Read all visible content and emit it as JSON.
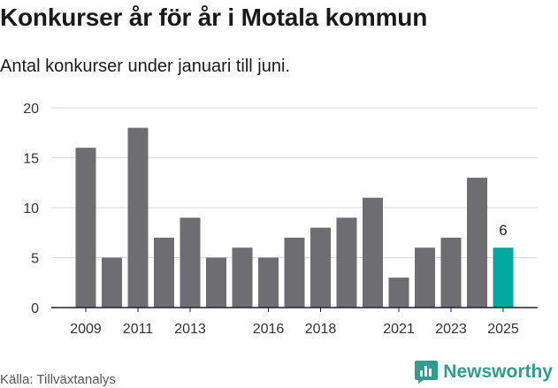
{
  "title": "Konkurser år för år i Motala kommun",
  "subtitle": "Antal konkurser under januari till juni.",
  "source": "Källa: Tillväxtanalys",
  "brand": {
    "name": "Newsworthy",
    "color": "#2f9e8f"
  },
  "chart_data": {
    "type": "bar",
    "categories": [
      "2009",
      "2010",
      "2011",
      "2012",
      "2013",
      "2014",
      "2015",
      "2016",
      "2017",
      "2018",
      "2019",
      "2020",
      "2021",
      "2022",
      "2023",
      "2024",
      "2025"
    ],
    "values": [
      16,
      5,
      18,
      7,
      9,
      5,
      6,
      5,
      7,
      8,
      9,
      11,
      3,
      6,
      7,
      13,
      6
    ],
    "x_tick_labels": [
      "2009",
      "2011",
      "2013",
      "2016",
      "2018",
      "2021",
      "2023",
      "2025"
    ],
    "y_ticks": [
      0,
      5,
      10,
      15,
      20
    ],
    "ylim": [
      0,
      20
    ],
    "bar_color": "#6e6d72",
    "highlight": {
      "category": "2025",
      "color": "#00a99d",
      "label": "6"
    },
    "grid": true
  }
}
